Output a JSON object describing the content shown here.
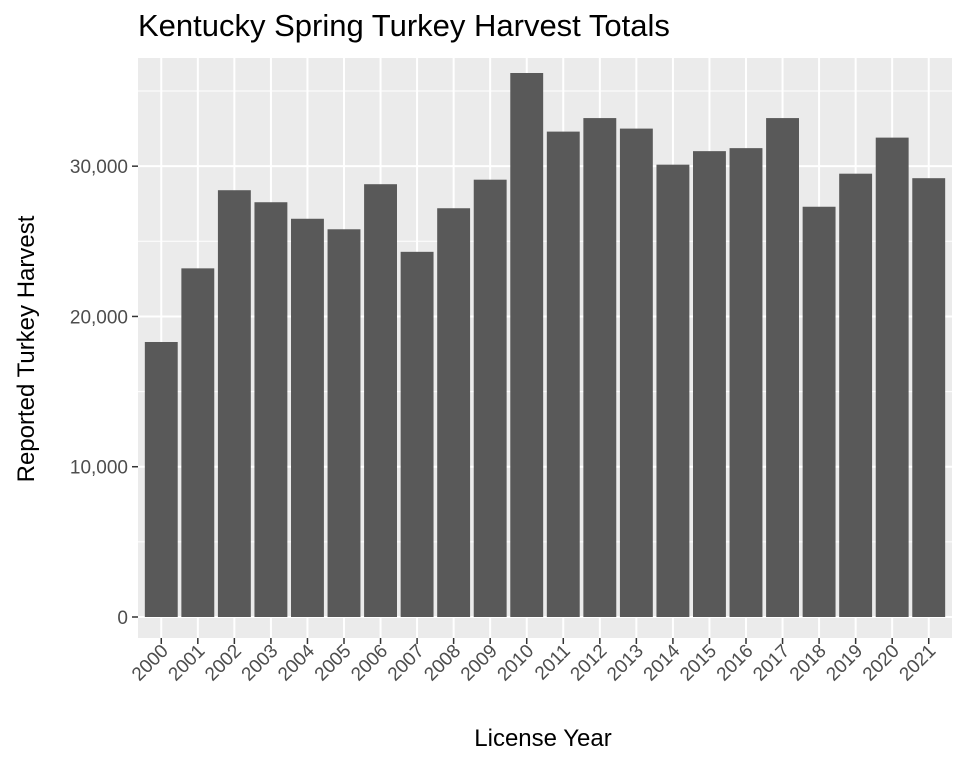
{
  "chart_data": {
    "type": "bar",
    "title": "Kentucky Spring Turkey Harvest Totals",
    "xlabel": "License Year",
    "ylabel": "Reported Turkey Harvest",
    "categories": [
      "2000",
      "2001",
      "2002",
      "2003",
      "2004",
      "2005",
      "2006",
      "2007",
      "2008",
      "2009",
      "2010",
      "2011",
      "2012",
      "2013",
      "2014",
      "2015",
      "2016",
      "2017",
      "2018",
      "2019",
      "2020",
      "2021"
    ],
    "values": [
      18300,
      23200,
      28400,
      27600,
      26500,
      25800,
      28800,
      24300,
      27200,
      29100,
      36200,
      32300,
      33200,
      32500,
      30100,
      31000,
      31200,
      33200,
      27300,
      29500,
      31900,
      29200
    ],
    "y_ticks": [
      0,
      10000,
      20000,
      30000
    ],
    "y_tick_labels": [
      "0",
      "10,000",
      "20,000",
      "30,000"
    ],
    "ylim": [
      0,
      37950
    ],
    "grid": true,
    "legend": "none",
    "colors": {
      "bar": "#595959",
      "panel_background": "#ebebeb",
      "grid": "#ffffff",
      "tick_text": "#4d4d4d",
      "tick_mark": "#333333"
    }
  }
}
